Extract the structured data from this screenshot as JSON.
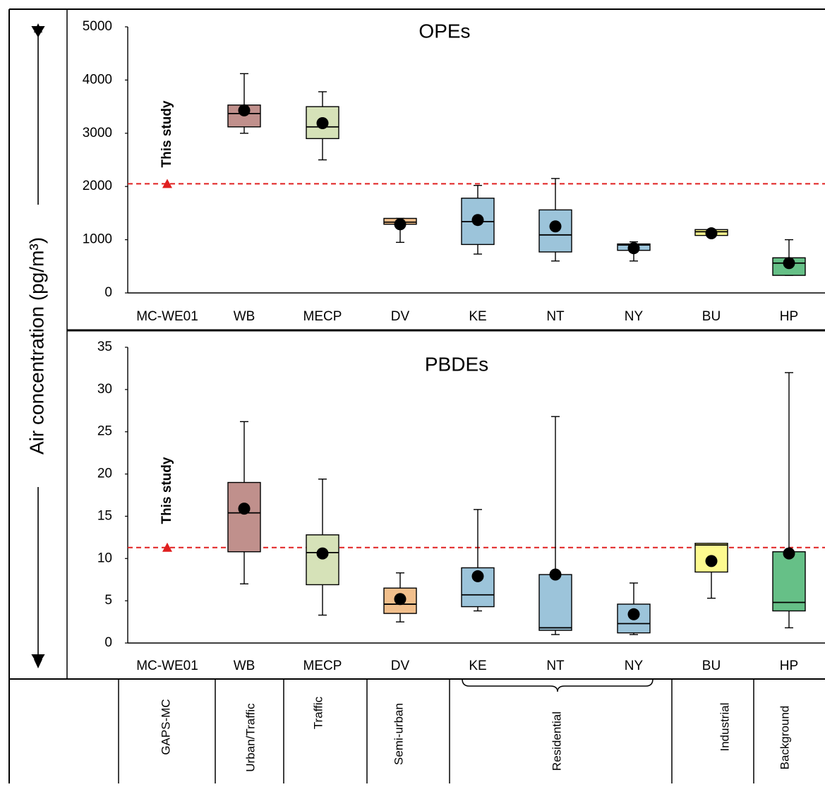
{
  "y_axis_label": "Air concentration (pg/m³)",
  "study_label": "This study",
  "sites": [
    "MC-WE01",
    "WB",
    "MECP",
    "DV",
    "KE",
    "NT",
    "NY",
    "BU",
    "HP"
  ],
  "site_types": {
    "GAPS-MC": "GAPS-MC",
    "Urban/Traffic": "Urban/Traffic",
    "Traffic": "Traffic",
    "Semi-urban": "Semi-urban",
    "Residential": "Residential",
    "Industrial": "Industrial",
    "Background": "Background"
  },
  "colors": {
    "WB": "#c0908c",
    "MECP": "#d6e2b8",
    "DV": "#f1bf8c",
    "KE": "#9cc4da",
    "NT": "#9cc4da",
    "NY": "#9cc4da",
    "BU": "#fdfa8f",
    "HP": "#66c087",
    "reference_line": "#e02020"
  },
  "chart_data": [
    {
      "type": "box",
      "title": "OPEs",
      "xlabel": "",
      "ylabel": "Air concentration (pg/m³)",
      "ylim": [
        0,
        5000
      ],
      "yticks": [
        0,
        1000,
        2000,
        3000,
        4000,
        5000
      ],
      "grid": false,
      "this_study": 2050,
      "boxes": [
        {
          "site": "WB",
          "min": 3000,
          "q1": 3120,
          "median": 3370,
          "q3": 3530,
          "max": 4120,
          "mean": 3430
        },
        {
          "site": "MECP",
          "min": 2500,
          "q1": 2900,
          "median": 3120,
          "q3": 3500,
          "max": 3780,
          "mean": 3190
        },
        {
          "site": "DV",
          "min": 950,
          "q1": 1290,
          "median": 1330,
          "q3": 1400,
          "max": 1400,
          "mean": 1290
        },
        {
          "site": "KE",
          "min": 730,
          "q1": 910,
          "median": 1340,
          "q3": 1780,
          "max": 2020,
          "mean": 1370
        },
        {
          "site": "NT",
          "min": 600,
          "q1": 770,
          "median": 1090,
          "q3": 1560,
          "max": 2150,
          "mean": 1250
        },
        {
          "site": "NY",
          "min": 600,
          "q1": 800,
          "median": 900,
          "q3": 920,
          "max": 960,
          "mean": 840
        },
        {
          "site": "BU",
          "min": 1080,
          "q1": 1080,
          "median": 1150,
          "q3": 1190,
          "max": 1190,
          "mean": 1120
        },
        {
          "site": "HP",
          "min": 330,
          "q1": 330,
          "median": 560,
          "q3": 660,
          "max": 1000,
          "mean": 560
        }
      ]
    },
    {
      "type": "box",
      "title": "PBDEs",
      "xlabel": "",
      "ylabel": "Air concentration (pg/m³)",
      "ylim": [
        0,
        35
      ],
      "yticks": [
        0,
        5,
        10,
        15,
        20,
        25,
        30,
        35
      ],
      "grid": false,
      "this_study": 11.3,
      "boxes": [
        {
          "site": "WB",
          "min": 7.0,
          "q1": 10.8,
          "median": 15.4,
          "q3": 19.0,
          "max": 26.2,
          "mean": 15.9
        },
        {
          "site": "MECP",
          "min": 3.3,
          "q1": 6.9,
          "median": 10.7,
          "q3": 12.8,
          "max": 19.4,
          "mean": 10.6
        },
        {
          "site": "DV",
          "min": 2.5,
          "q1": 3.5,
          "median": 4.6,
          "q3": 6.5,
          "max": 8.3,
          "mean": 5.2
        },
        {
          "site": "KE",
          "min": 3.8,
          "q1": 4.3,
          "median": 5.7,
          "q3": 8.9,
          "max": 15.8,
          "mean": 7.9
        },
        {
          "site": "NT",
          "min": 1.0,
          "q1": 1.5,
          "median": 1.8,
          "q3": 8.1,
          "max": 26.8,
          "mean": 8.1
        },
        {
          "site": "NY",
          "min": 1.0,
          "q1": 1.2,
          "median": 2.3,
          "q3": 4.6,
          "max": 7.1,
          "mean": 3.4
        },
        {
          "site": "BU",
          "min": 5.3,
          "q1": 8.4,
          "median": 11.6,
          "q3": 11.8,
          "max": 11.8,
          "mean": 9.7
        },
        {
          "site": "HP",
          "min": 1.8,
          "q1": 3.8,
          "median": 4.8,
          "q3": 10.8,
          "max": 32.0,
          "mean": 10.6
        }
      ]
    }
  ]
}
